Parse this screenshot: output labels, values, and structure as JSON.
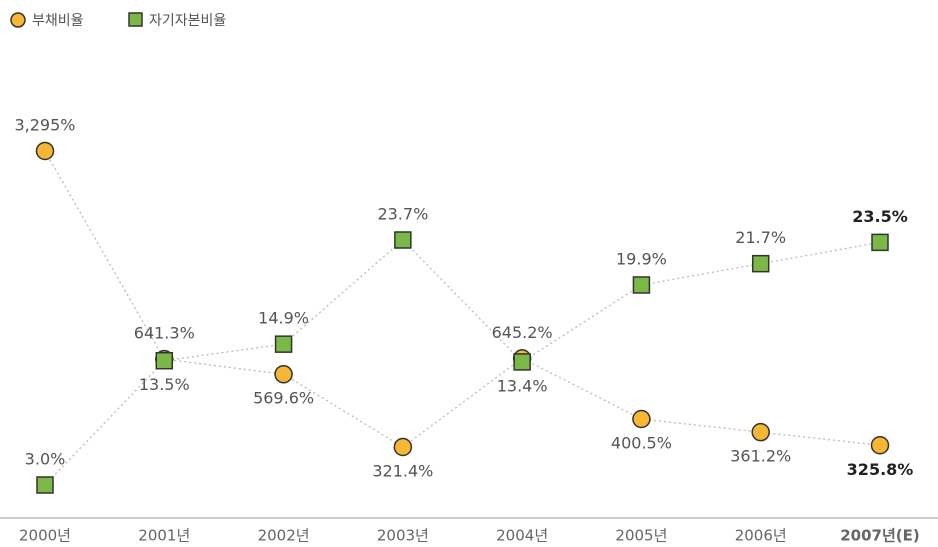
{
  "chart_data": {
    "type": "line",
    "categories": [
      "2000년",
      "2001년",
      "2002년",
      "2003년",
      "2004년",
      "2005년",
      "2006년",
      "2007년(E)"
    ],
    "series": [
      {
        "name": "부채비율",
        "color": "#f7b633",
        "values": [
          3295,
          641.3,
          569.6,
          321.4,
          645.2,
          400.5,
          361.2,
          325.8
        ],
        "value_labels": [
          "3,295%",
          "641.3%",
          "569.6%",
          "321.4%",
          "645.2%",
          "400.5%",
          "361.2%",
          "325.8%"
        ]
      },
      {
        "name": "자기자본비율",
        "color": "#7cb845",
        "values": [
          3.0,
          13.5,
          14.9,
          23.7,
          13.4,
          19.9,
          21.7,
          23.5
        ],
        "value_labels": [
          "3.0%",
          "13.5%",
          "14.9%",
          "23.7%",
          "13.4%",
          "19.9%",
          "21.7%",
          "23.5%"
        ]
      }
    ]
  }
}
